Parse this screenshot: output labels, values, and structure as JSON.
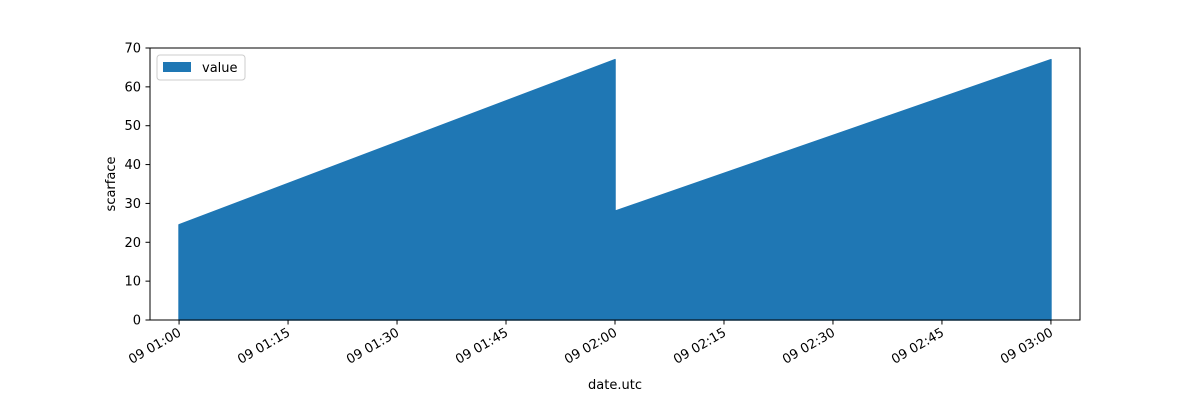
{
  "chart_data": {
    "type": "area",
    "title": "",
    "xlabel": "date.utc",
    "ylabel": "scarface",
    "ylim": [
      0,
      70
    ],
    "yticks": [
      0,
      10,
      20,
      30,
      40,
      50,
      60,
      70
    ],
    "xlim": [
      "09 00:56",
      "09 03:04"
    ],
    "xtick_labels": [
      "09 01:00",
      "09 01:15",
      "09 01:30",
      "09 01:45",
      "09 02:00",
      "09 02:15",
      "09 02:30",
      "09 02:45",
      "09 03:00"
    ],
    "xtick_times": [
      "09 01:00",
      "09 01:15",
      "09 01:30",
      "09 01:45",
      "09 02:00",
      "09 02:15",
      "09 02:30",
      "09 02:45",
      "09 03:00"
    ],
    "grid": false,
    "legend_position": "upper-left",
    "series": [
      {
        "name": "value",
        "color": "#1f77b4",
        "points": [
          {
            "x": "09 01:00",
            "y": 22.5
          },
          {
            "x": "09 01:00",
            "y": 24.5
          },
          {
            "x": "09 02:00",
            "y": 67
          },
          {
            "x": "09 02:00",
            "y": 28
          },
          {
            "x": "09 03:00",
            "y": 67
          }
        ]
      }
    ]
  }
}
